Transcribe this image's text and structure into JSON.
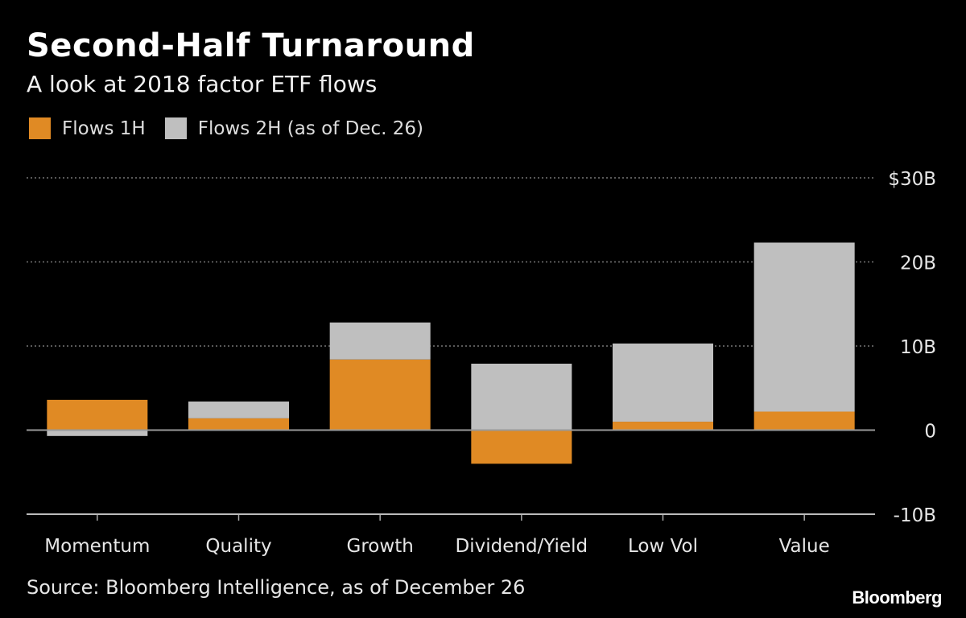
{
  "chart_data": {
    "type": "bar",
    "stacked": true,
    "title": "Second-Half Turnaround",
    "subtitle": "A look at 2018 factor ETF flows",
    "categories": [
      "Momentum",
      "Quality",
      "Growth",
      "Dividend/Yield",
      "Low Vol",
      "Value"
    ],
    "series": [
      {
        "name": "Flows 1H",
        "color": "#E08A24",
        "values": [
          3.6,
          1.4,
          8.4,
          -4.0,
          1.0,
          2.2
        ]
      },
      {
        "name": "Flows 2H (as of Dec. 26)",
        "color": "#BFBFBF",
        "values": [
          -0.7,
          2.0,
          4.4,
          7.9,
          9.3,
          20.1
        ]
      }
    ],
    "ylim": [
      -10,
      30
    ],
    "yticks": [
      30,
      20,
      10,
      0,
      -10
    ],
    "ytick_labels": [
      "$30B",
      "20B",
      "10B",
      "0",
      "-10B"
    ],
    "xlabel": "",
    "ylabel": "",
    "grid": true,
    "legend": "top-left",
    "source": "Source: Bloomberg Intelligence, as of December 26",
    "logo": "Bloomberg"
  }
}
